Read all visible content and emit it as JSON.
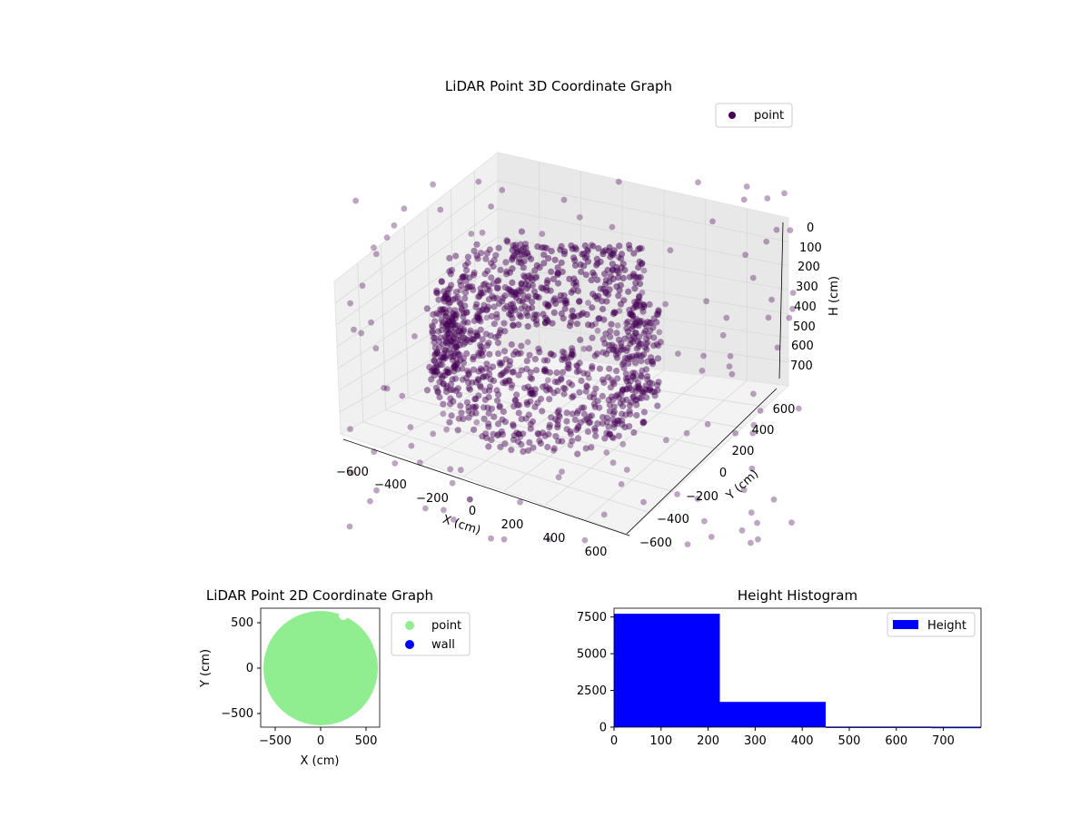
{
  "colors": {
    "point3d": "#440154",
    "point2d": "#90ee90",
    "wall": "#0000ff",
    "histogram": "#0000ff",
    "pane": "#f2f2f2",
    "grid": "#d9d9d9"
  },
  "chart_data": [
    {
      "type": "scatter",
      "projection": "3d",
      "title": "LiDAR Point 3D Coordinate Graph",
      "xlabel": "X (cm)",
      "ylabel": "Y (cm)",
      "zlabel": "H (cm)",
      "x_ticks": [
        "−600",
        "−400",
        "−200",
        "0",
        "200",
        "400",
        "600"
      ],
      "y_ticks": [
        "−600",
        "−400",
        "−200",
        "0",
        "200",
        "400",
        "600"
      ],
      "z_ticks": [
        "0",
        "100",
        "200",
        "300",
        "400",
        "500",
        "600",
        "700"
      ],
      "xlim": [
        -650,
        650
      ],
      "ylim": [
        -650,
        650
      ],
      "zlim": [
        0,
        750
      ],
      "z_inverted": true,
      "grid": true,
      "legend": {
        "position": "top-right",
        "entries": [
          "point"
        ]
      },
      "series": [
        {
          "name": "point",
          "description": "dense partial ring of points around the sensor (radius ~550 cm, opening toward +X/-Y), mostly at heights 0-450 cm, with sparse outliers up to ~750 cm"
        }
      ]
    },
    {
      "type": "scatter",
      "title": "LiDAR Point 2D Coordinate Graph",
      "xlabel": "X (cm)",
      "ylabel": "Y (cm)",
      "x_ticks": [
        "−500",
        "0",
        "500"
      ],
      "y_ticks": [
        "−500",
        "0",
        "500"
      ],
      "xlim": [
        -650,
        650
      ],
      "ylim": [
        -650,
        650
      ],
      "legend": {
        "position": "outside-right",
        "entries": [
          "point",
          "wall"
        ]
      },
      "series": [
        {
          "name": "point",
          "color": "#90ee90"
        },
        {
          "name": "wall",
          "color": "#0000ff"
        }
      ]
    },
    {
      "type": "bar",
      "histogram": true,
      "title": "Height Histogram",
      "xlabel": "",
      "ylabel": "",
      "x_ticks": [
        "0",
        "100",
        "200",
        "300",
        "400",
        "500",
        "600",
        "700"
      ],
      "y_ticks": [
        "0",
        "2500",
        "5000",
        "7500"
      ],
      "xlim": [
        0,
        780
      ],
      "ylim": [
        0,
        8100
      ],
      "legend": {
        "position": "top-right",
        "entries": [
          "Height"
        ]
      },
      "bins": [
        {
          "x0": 0,
          "x1": 225,
          "count": 7720
        },
        {
          "x0": 225,
          "x1": 450,
          "count": 1720
        },
        {
          "x0": 450,
          "x1": 675,
          "count": 40
        },
        {
          "x0": 675,
          "x1": 780,
          "count": 20
        }
      ],
      "series": [
        {
          "name": "Height",
          "color": "#0000ff"
        }
      ]
    }
  ]
}
